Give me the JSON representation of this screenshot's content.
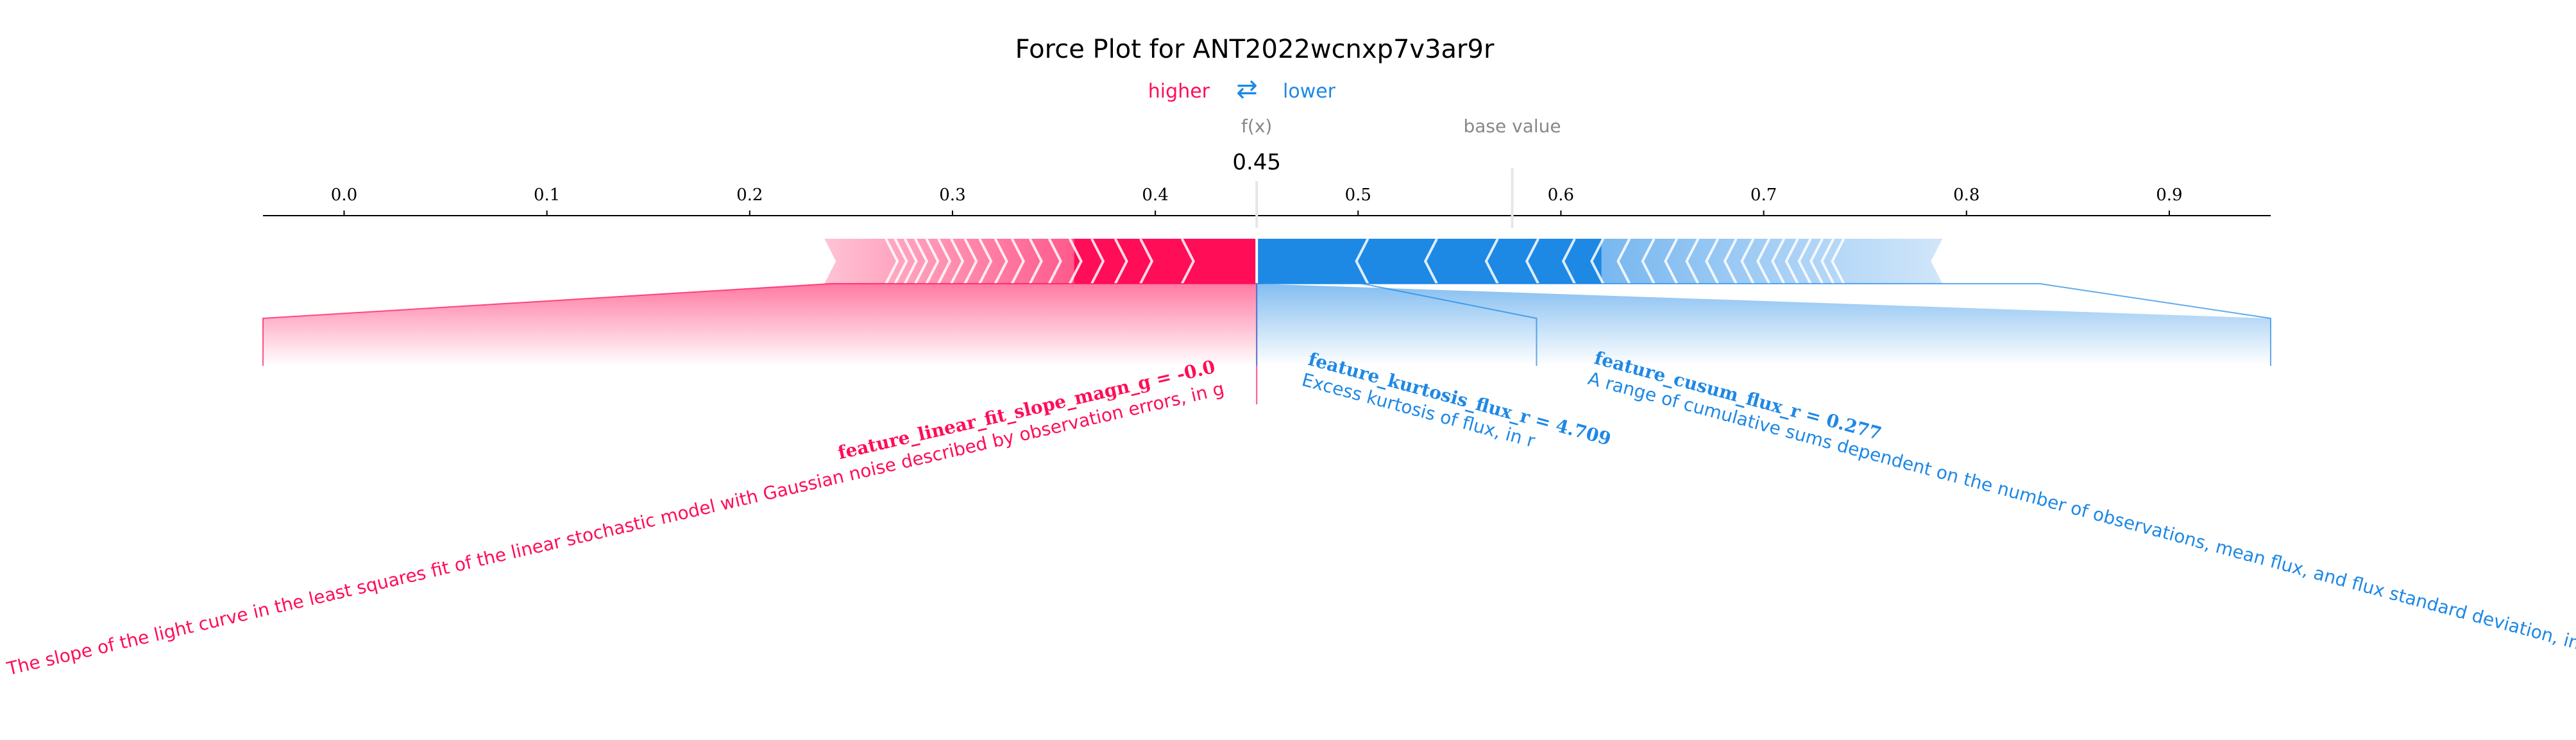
{
  "chart_data": {
    "type": "force",
    "title": "Force Plot for ANT2022wcnxp7v3ar9r",
    "legend": {
      "higher": "higher",
      "lower": "lower",
      "arrow_glyph": "⇄"
    },
    "output_label": "f(x)",
    "output_value": 0.45,
    "output_text": "0.45",
    "base_label": "base value",
    "base_value": 0.576,
    "xlim": [
      -0.04,
      0.95
    ],
    "ticks": [
      0.0,
      0.1,
      0.2,
      0.3,
      0.4,
      0.5,
      0.6,
      0.7,
      0.8,
      0.9
    ],
    "tick_labels": [
      "0.0",
      "0.1",
      "0.2",
      "0.3",
      "0.4",
      "0.5",
      "0.6",
      "0.7",
      "0.8",
      "0.9"
    ],
    "positive_extent": [
      0.24,
      0.45
    ],
    "negative_extent": [
      0.45,
      0.785
    ],
    "positive_boundaries": [
      0.24,
      0.27,
      0.4,
      0.416,
      0.45
    ],
    "negative_boundaries": [
      0.45,
      0.502,
      0.536,
      0.785
    ],
    "features": [
      {
        "name": "feature_linear_fit_slope_magn_g",
        "value_text": "-0.0",
        "label": "feature_linear_fit_slope_magn_g = -0.0",
        "description": "The slope of the light curve in the least squares fit of the linear stochastic model with Gaussian noise described by observation errors, in g",
        "effect": "higher"
      },
      {
        "name": "feature_kurtosis_flux_r",
        "value_text": "4.709",
        "label": "feature_kurtosis_flux_r = 4.709",
        "description": "Excess kurtosis of flux, in r",
        "effect": "lower"
      },
      {
        "name": "feature_cusum_flux_r",
        "value_text": "0.277",
        "label": "feature_cusum_flux_r = 0.277",
        "description": "A range of cumulative sums dependent on the number of observations, mean flux, and flux standard deviation, in r",
        "effect": "lower"
      }
    ],
    "colors": {
      "higher": "#ff0d57",
      "lower": "#1e88e5",
      "higher_light": "#ffc3d5",
      "lower_light": "#d1e6fa",
      "axis": "#000000",
      "muted": "#888888"
    }
  }
}
